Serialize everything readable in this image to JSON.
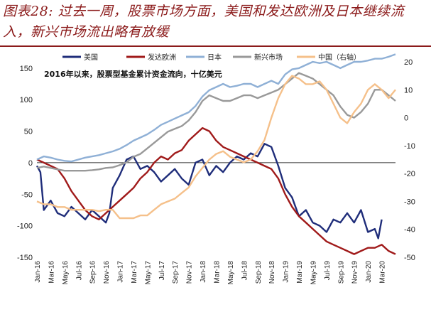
{
  "header": {
    "title": "图表28: 过去一周，股票市场方面，美国和发达欧洲及日本继续流入，新兴市场流出略有放缓"
  },
  "chart_data": {
    "type": "line",
    "annotation": "2016年以来，股票型基金累计资金流向，十亿美元",
    "legend_position": "top",
    "y_left": {
      "range": [
        -150,
        160
      ],
      "ticks": [
        -150,
        -100,
        -50,
        0,
        50,
        100,
        150
      ]
    },
    "y_right": {
      "range": [
        -50,
        20
      ],
      "ticks": [
        -50,
        -40,
        -30,
        -20,
        -10,
        0,
        10,
        20
      ]
    },
    "x_range": [
      0,
      52
    ],
    "x_ticks": [
      "Jan-16",
      "Mar-16",
      "May-16",
      "Jul-16",
      "Sep-16",
      "Nov-16",
      "Jan-17",
      "Mar-17",
      "May-17",
      "Jul-17",
      "Sep-17",
      "Nov-17",
      "Jan-18",
      "Mar-18",
      "May-18",
      "Jul-18",
      "Sep-18",
      "Nov-18",
      "Jan-19",
      "Mar-19",
      "May-19",
      "Jul-19",
      "Sep-19",
      "Nov-19",
      "Jan-20",
      "Mar-20"
    ],
    "series": [
      {
        "name": "美国",
        "color": "#1f2d7a",
        "axis": "left",
        "x": [
          0,
          0.5,
          1,
          2,
          3,
          4,
          5,
          6,
          7,
          8,
          9,
          10,
          10.5,
          11,
          12,
          13,
          14,
          15,
          16,
          17,
          18,
          19,
          20,
          21,
          22,
          23,
          24,
          25,
          26,
          27,
          28,
          29,
          30,
          31,
          32,
          33,
          34,
          35,
          36,
          37,
          38,
          39,
          40,
          41,
          42,
          43,
          44,
          45,
          46,
          47,
          48,
          49,
          49.5,
          50
        ],
        "values": [
          -5,
          -15,
          -75,
          -60,
          -80,
          -85,
          -70,
          -80,
          -90,
          -75,
          -85,
          -95,
          -80,
          -40,
          -20,
          5,
          10,
          -10,
          -5,
          -15,
          -30,
          -20,
          -10,
          -25,
          -35,
          0,
          5,
          -20,
          -5,
          -15,
          0,
          10,
          5,
          15,
          10,
          30,
          25,
          -5,
          -40,
          -55,
          -85,
          -75,
          -95,
          -100,
          -110,
          -90,
          -95,
          -80,
          -95,
          -75,
          -110,
          -105,
          -120,
          -90
        ]
      },
      {
        "name": "发达欧洲",
        "color": "#a01a1a",
        "axis": "left",
        "x": [
          0,
          1,
          2,
          3,
          4,
          5,
          6,
          7,
          8,
          9,
          10,
          11,
          12,
          13,
          14,
          15,
          16,
          17,
          18,
          19,
          20,
          21,
          22,
          23,
          24,
          25,
          26,
          27,
          28,
          29,
          30,
          31,
          32,
          33,
          34,
          35,
          36,
          37,
          38,
          39,
          40,
          41,
          42,
          43,
          44,
          45,
          46,
          47,
          48,
          49,
          50,
          51,
          52
        ],
        "values": [
          5,
          0,
          -5,
          -10,
          -25,
          -45,
          -60,
          -75,
          -85,
          -90,
          -80,
          -70,
          -60,
          -50,
          -40,
          -25,
          -15,
          0,
          10,
          5,
          15,
          20,
          35,
          45,
          55,
          50,
          35,
          25,
          20,
          15,
          10,
          5,
          0,
          -5,
          -10,
          -25,
          -50,
          -70,
          -85,
          -95,
          -105,
          -115,
          -125,
          -130,
          -135,
          -140,
          -145,
          -140,
          -135,
          -135,
          -130,
          -140,
          -145
        ]
      },
      {
        "name": "日本",
        "color": "#8fb0d6",
        "axis": "left",
        "x": [
          0,
          1,
          2,
          3,
          4,
          5,
          6,
          7,
          8,
          9,
          10,
          11,
          12,
          13,
          14,
          15,
          16,
          17,
          18,
          19,
          20,
          21,
          22,
          23,
          24,
          25,
          26,
          27,
          28,
          29,
          30,
          31,
          32,
          33,
          34,
          35,
          36,
          37,
          38,
          39,
          40,
          41,
          42,
          43,
          44,
          45,
          46,
          47,
          48,
          49,
          50,
          51,
          52
        ],
        "values": [
          5,
          10,
          8,
          5,
          3,
          2,
          5,
          8,
          10,
          12,
          15,
          18,
          22,
          28,
          35,
          40,
          45,
          52,
          60,
          65,
          70,
          75,
          80,
          90,
          105,
          115,
          120,
          125,
          120,
          122,
          125,
          125,
          120,
          125,
          130,
          125,
          140,
          148,
          150,
          155,
          160,
          158,
          160,
          155,
          150,
          155,
          160,
          160,
          162,
          165,
          165,
          168,
          172
        ]
      },
      {
        "name": "新兴市场",
        "color": "#999999",
        "axis": "right",
        "x": [
          0,
          1,
          2,
          3,
          4,
          5,
          6,
          7,
          8,
          9,
          10,
          11,
          12,
          13,
          14,
          15,
          16,
          17,
          18,
          19,
          20,
          21,
          22,
          23,
          24,
          25,
          26,
          27,
          28,
          29,
          30,
          31,
          32,
          33,
          34,
          35,
          36,
          37,
          38,
          39,
          40,
          41,
          42,
          43,
          44,
          45,
          46,
          47,
          48,
          49,
          50,
          51,
          52
        ],
        "values": [
          -18,
          -17.5,
          -18,
          -18.5,
          -19,
          -19,
          -19,
          -19,
          -18.8,
          -18.5,
          -18,
          -17.8,
          -17,
          -16,
          -14,
          -13,
          -11,
          -9,
          -7,
          -5,
          -4,
          -3,
          -1,
          2,
          6,
          8,
          7,
          6,
          6,
          7,
          8,
          8,
          7,
          8,
          9,
          10,
          12,
          14,
          16,
          15,
          14,
          12,
          10,
          8,
          4,
          1,
          0,
          2,
          5,
          10,
          10,
          8,
          6
        ]
      },
      {
        "name": "中国（右轴）",
        "color": "#f5c08a",
        "axis": "right",
        "x": [
          0,
          1,
          2,
          3,
          4,
          5,
          6,
          7,
          8,
          9,
          10,
          11,
          12,
          13,
          14,
          15,
          16,
          17,
          18,
          19,
          20,
          21,
          22,
          23,
          24,
          25,
          26,
          27,
          28,
          29,
          30,
          31,
          32,
          33,
          34,
          35,
          36,
          37,
          38,
          39,
          40,
          41,
          42,
          43,
          44,
          45,
          46,
          47,
          48,
          49,
          50,
          51,
          52
        ],
        "values": [
          -30,
          -31,
          -31,
          -32,
          -32,
          -33,
          -33,
          -33,
          -33,
          -33.5,
          -33,
          -33,
          -36,
          -36,
          -36,
          -35,
          -35,
          -33,
          -31,
          -30,
          -29,
          -27,
          -25,
          -21,
          -18,
          -15,
          -13,
          -12,
          -14,
          -15,
          -16,
          -15,
          -12,
          -8,
          0,
          7,
          12,
          15,
          14,
          12,
          12,
          13,
          10,
          5,
          0,
          -2,
          2,
          5,
          10,
          12,
          10,
          7,
          10
        ]
      }
    ]
  }
}
